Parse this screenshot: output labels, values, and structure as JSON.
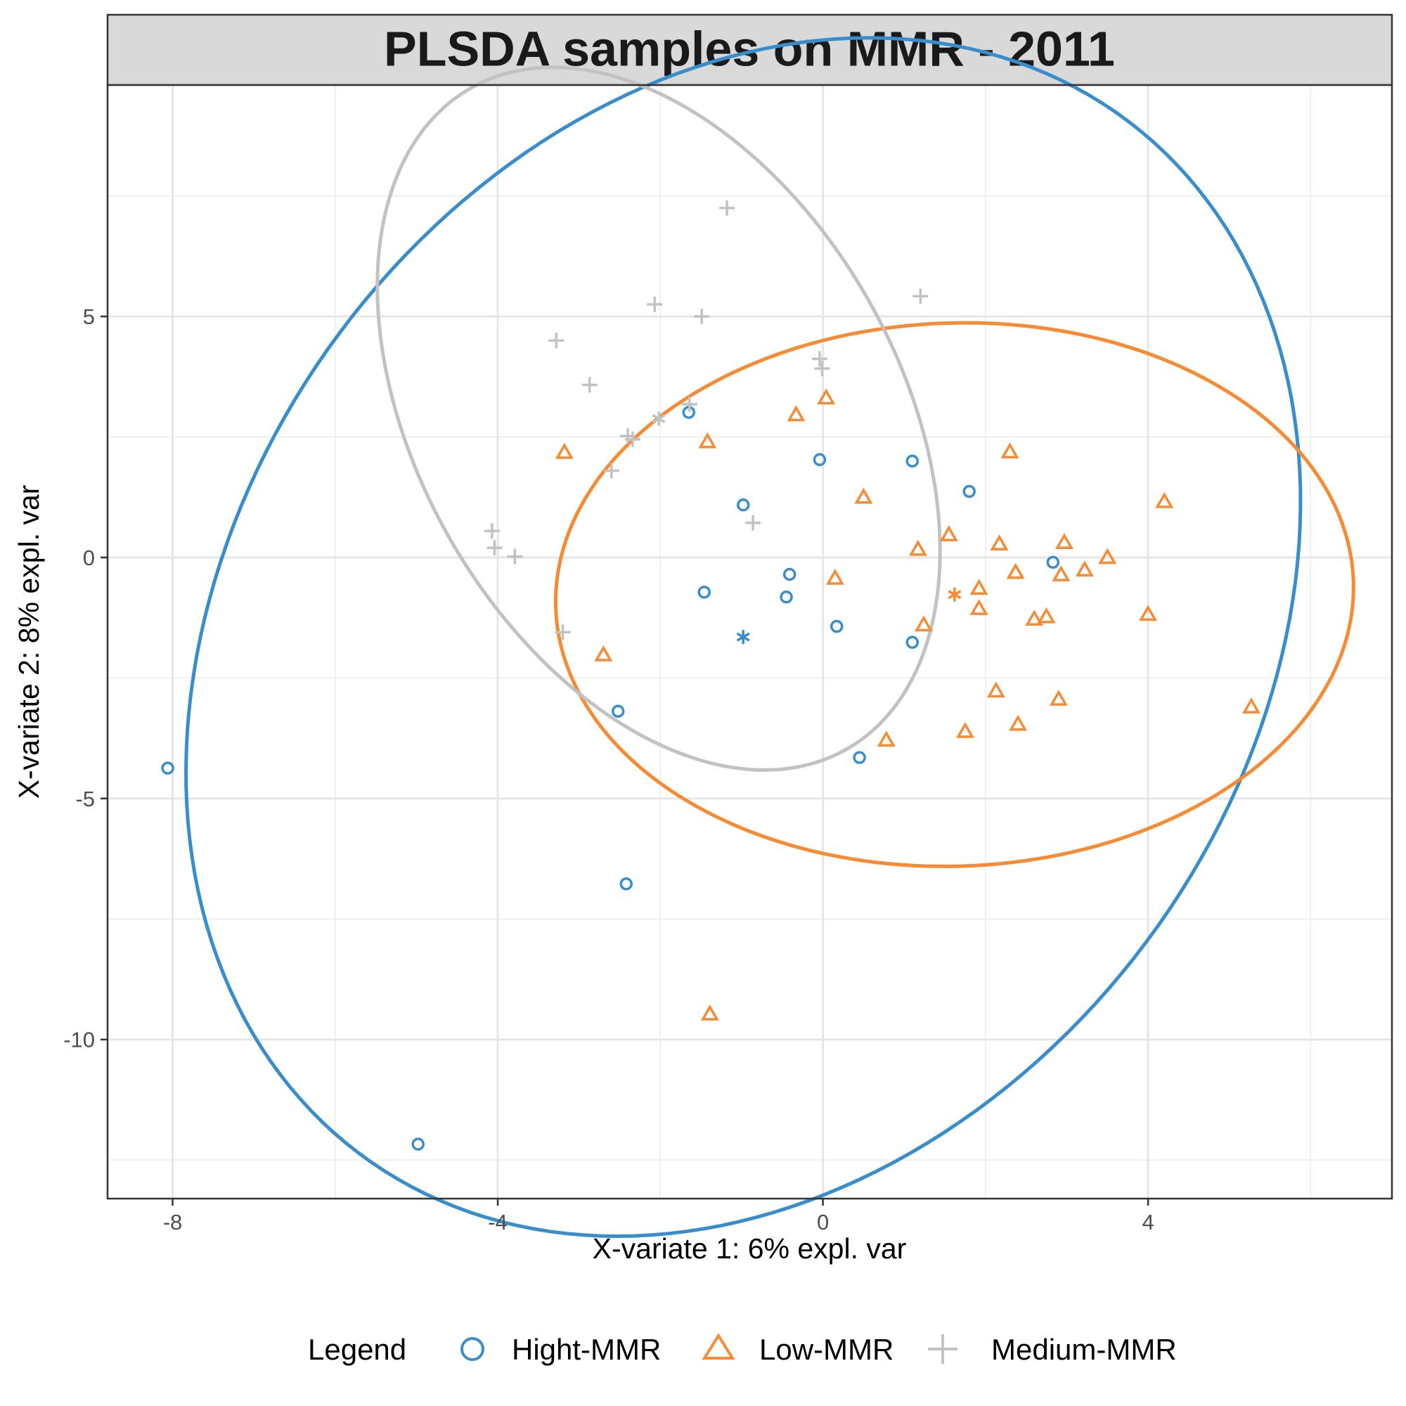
{
  "chart_data": {
    "type": "scatter",
    "title": "PLSDA samples on MMR - 2011",
    "xlabel": "X-variate 1: 6% expl. var",
    "ylabel": "X-variate 2: 8% expl. var",
    "xlim": [
      -8.8,
      7.0
    ],
    "ylim": [
      -13.3,
      9.8
    ],
    "xticks": [
      -8,
      -4,
      0,
      4
    ],
    "xtick_labels": [
      "-8",
      "-4",
      "0",
      "4"
    ],
    "yticks": [
      5,
      0,
      -5,
      -10
    ],
    "ytick_labels": [
      "5",
      "0",
      "-5",
      "-10"
    ],
    "x_minor_grid": [
      -6,
      -2,
      2,
      6
    ],
    "y_minor_grid": [
      7.5,
      2.5,
      -2.5,
      -7.5,
      -12.5
    ],
    "grid": true,
    "legend": {
      "title": "Legend",
      "position": "bottom"
    },
    "series": [
      {
        "name": "Hight-MMR",
        "color": "#388ECC",
        "marker": "circle",
        "centroid": [
          -0.98,
          -1.65
        ],
        "ellipse": [
          [
            -0.98,
            -1.65
          ],
          [
            -3.44,
            9.06
          ],
          [
            -5.93,
            -8.51
          ]
        ],
        "points": [
          [
            -8.06,
            -4.37
          ],
          [
            -4.98,
            -12.17
          ],
          [
            -2.42,
            -6.77
          ],
          [
            -2.52,
            -3.19
          ],
          [
            -1.65,
            3.01
          ],
          [
            -0.98,
            1.09
          ],
          [
            -1.46,
            -0.72
          ],
          [
            -0.04,
            2.03
          ],
          [
            -0.41,
            -0.35
          ],
          [
            -0.45,
            -0.82
          ],
          [
            0.17,
            -1.43
          ],
          [
            0.45,
            -4.15
          ],
          [
            1.1,
            2.0
          ],
          [
            1.1,
            -1.76
          ],
          [
            1.8,
            1.37
          ],
          [
            2.83,
            -0.1
          ]
        ]
      },
      {
        "name": "Low-MMR",
        "color": "#F68B33",
        "marker": "triangle",
        "centroid": [
          1.62,
          -0.77
        ],
        "ellipse": [
          [
            1.62,
            -0.77
          ],
          [
            4.88,
            -0.45
          ],
          [
            0.52,
            5.62
          ]
        ],
        "points": [
          [
            -3.18,
            2.18
          ],
          [
            -2.7,
            -2.02
          ],
          [
            -1.42,
            2.4
          ],
          [
            -1.39,
            -9.47
          ],
          [
            -0.33,
            2.96
          ],
          [
            0.04,
            3.31
          ],
          [
            0.15,
            -0.43
          ],
          [
            0.5,
            1.25
          ],
          [
            0.78,
            -3.79
          ],
          [
            1.17,
            0.17
          ],
          [
            1.24,
            -1.4
          ],
          [
            1.55,
            0.47
          ],
          [
            1.75,
            -3.61
          ],
          [
            1.92,
            -0.64
          ],
          [
            1.92,
            -1.06
          ],
          [
            2.13,
            -2.77
          ],
          [
            2.17,
            0.28
          ],
          [
            2.3,
            2.19
          ],
          [
            2.37,
            -0.31
          ],
          [
            2.4,
            -3.46
          ],
          [
            2.6,
            -1.28
          ],
          [
            2.75,
            -1.23
          ],
          [
            2.9,
            -2.94
          ],
          [
            2.93,
            -0.36
          ],
          [
            2.97,
            0.31
          ],
          [
            3.22,
            -0.26
          ],
          [
            3.5,
            0.0
          ],
          [
            4.0,
            -1.18
          ],
          [
            4.2,
            1.16
          ],
          [
            5.27,
            -3.1
          ]
        ]
      },
      {
        "name": "Medium-MMR",
        "color": "#C2C2C2",
        "marker": "plus",
        "centroid": [
          -2.02,
          2.88
        ],
        "ellipse": [
          [
            -2.02,
            2.88
          ],
          [
            0.7,
            6.06
          ],
          [
            -3.39,
            4.05
          ]
        ],
        "points": [
          [
            -1.18,
            7.25
          ],
          [
            -2.07,
            5.25
          ],
          [
            -1.49,
            5.0
          ],
          [
            -3.28,
            4.5
          ],
          [
            -2.87,
            3.58
          ],
          [
            -1.64,
            3.18
          ],
          [
            -0.04,
            4.12
          ],
          [
            -0.01,
            3.92
          ],
          [
            -2.4,
            2.52
          ],
          [
            -2.34,
            2.45
          ],
          [
            -2.6,
            1.8
          ],
          [
            -0.86,
            0.72
          ],
          [
            -4.07,
            0.55
          ],
          [
            -4.04,
            0.2
          ],
          [
            -3.79,
            0.02
          ],
          [
            -3.2,
            -1.55
          ],
          [
            1.2,
            5.42
          ]
        ]
      }
    ]
  }
}
